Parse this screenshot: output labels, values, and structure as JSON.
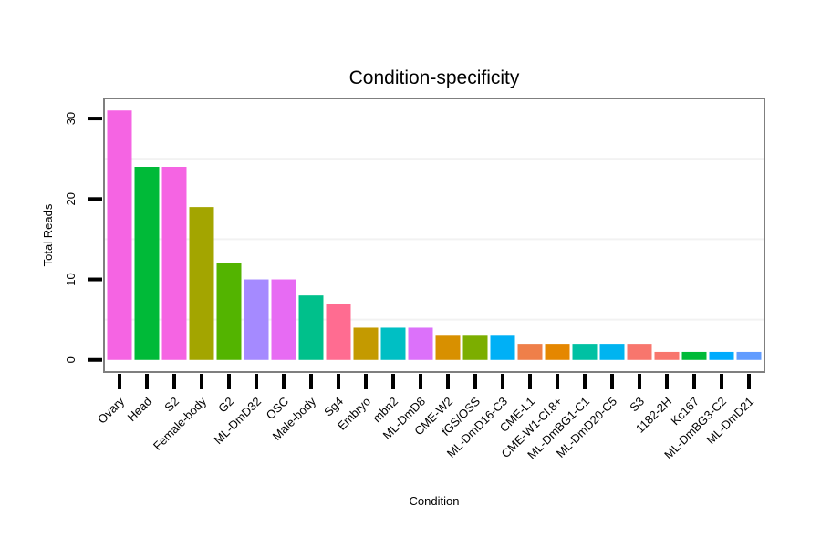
{
  "chart_data": {
    "type": "bar",
    "title": "Condition-specificity",
    "xlabel": "Condition",
    "ylabel": "Total Reads",
    "ylim": [
      -1.5,
      32.5
    ],
    "yticks": [
      0,
      10,
      20,
      30
    ],
    "grid": true,
    "categories": [
      "Ovary",
      "Head",
      "S2",
      "Female-body",
      "G2",
      "ML-DmD32",
      "OSC",
      "Male-body",
      "Sg4",
      "Embryo",
      "mbn2",
      "ML-DmD8",
      "CME-W2",
      "fGS/OSS",
      "ML-DmD16-C3",
      "CME-L1",
      "CME-W1-Cl.8+",
      "ML-DmBG1-C1",
      "ML-DmD20-C5",
      "S3",
      "1182-2H",
      "Kc167",
      "ML-DmBG3-C2",
      "ML-DmD21"
    ],
    "values": [
      31,
      24,
      24,
      19,
      12,
      10,
      10,
      8,
      7,
      4,
      4,
      4,
      3,
      3,
      3,
      2,
      2,
      2,
      2,
      2,
      1,
      1,
      1,
      1
    ],
    "colors": [
      "#F564E3",
      "#00BA38",
      "#F564E3",
      "#A3A500",
      "#53B400",
      "#A58AFF",
      "#E76BF3",
      "#00C08B",
      "#FF6C91",
      "#C49A00",
      "#00BFC4",
      "#DC71FA",
      "#D89000",
      "#7CAE00",
      "#00B0F6",
      "#EF7F49",
      "#E58700",
      "#00C1A3",
      "#00B4F0",
      "#F8766D",
      "#F8766D",
      "#00BA38",
      "#00ABFD",
      "#619CFF"
    ]
  }
}
